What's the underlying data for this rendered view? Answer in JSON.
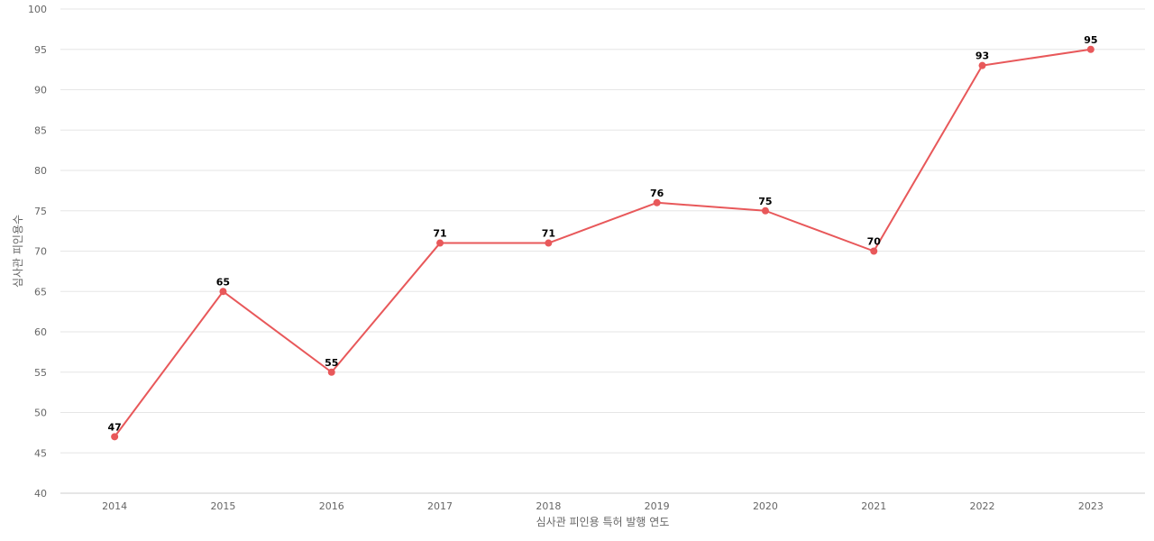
{
  "chart_data": {
    "type": "line",
    "title": "",
    "xlabel": "심사관 피인용 특허 발행 연도",
    "ylabel": "심사관 피인용수",
    "categories": [
      "2014",
      "2015",
      "2016",
      "2017",
      "2018",
      "2019",
      "2020",
      "2021",
      "2022",
      "2023"
    ],
    "series": [
      {
        "values": [
          47,
          65,
          55,
          71,
          71,
          76,
          75,
          70,
          93,
          95
        ],
        "color": "#e8585a"
      }
    ],
    "ylim": [
      40,
      100
    ],
    "yticks": [
      40,
      45,
      50,
      55,
      60,
      65,
      70,
      75,
      80,
      85,
      90,
      95,
      100
    ],
    "grid": true,
    "legend": "none",
    "data_labels": true
  }
}
